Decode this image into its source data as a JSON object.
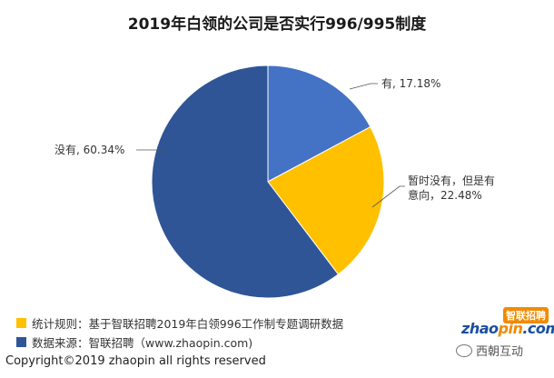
{
  "chart_data": {
    "type": "pie",
    "title": "2019年白领的公司是否实行996/995制度",
    "slices": [
      {
        "label": "有",
        "display": "有, 17.18%",
        "value": 17.18,
        "color": "#4472c4"
      },
      {
        "label": "暂时没有，但是有意向",
        "display_line1": "暂时没有，但是有",
        "display_line2": "意向，22.48%",
        "value": 22.48,
        "color": "#ffc000"
      },
      {
        "label": "没有",
        "display": "没有, 60.34%",
        "value": 60.34,
        "color": "#2f5597"
      }
    ]
  },
  "legend": [
    {
      "text": "统计规则：基于智联招聘2019年白领996工作制专题调研数据",
      "color": "#ffc000"
    },
    {
      "text": "数据来源：智联招聘（www.zhaopin.com)",
      "color": "#2f5597"
    }
  ],
  "copyright": "Copyright©2019 zhaopin all rights reserved",
  "logo": {
    "cn": "智联招聘",
    "en_prefix": "zhao",
    "en_highlight": "pin",
    "en_suffix": ".com"
  },
  "watermark": "西朝互动"
}
